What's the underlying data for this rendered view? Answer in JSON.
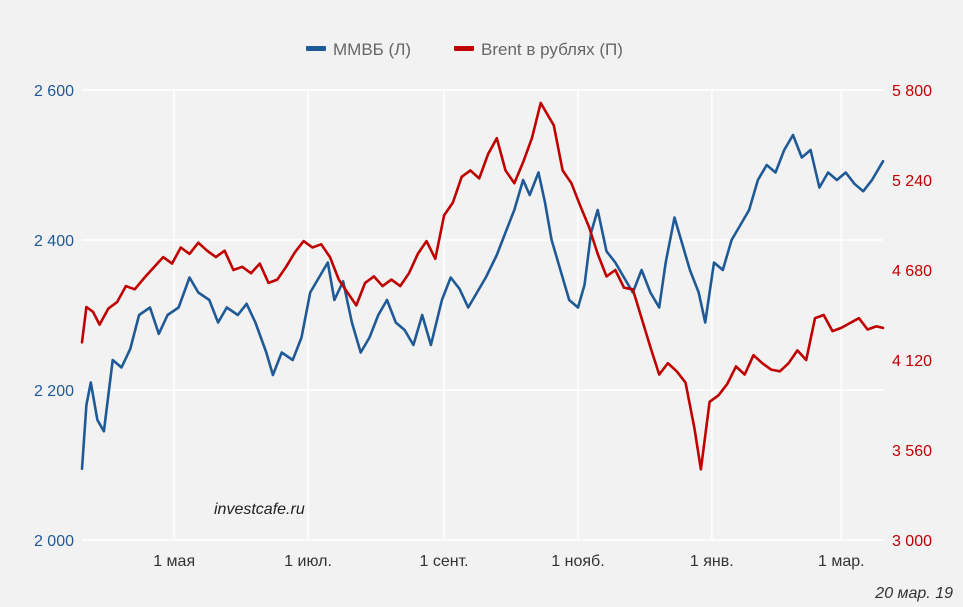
{
  "chart_data": {
    "type": "line",
    "title": "",
    "x_ticks": [
      "1 мая",
      "1 июл.",
      "1 сент.",
      "1 нояб.",
      "1 янв.",
      "1 мар."
    ],
    "x_range": [
      "2018-03-20",
      "2019-03-20"
    ],
    "y_left": {
      "ticks": [
        "2 000",
        "2 200",
        "2 400",
        "2 600"
      ],
      "range": [
        2000,
        2600
      ]
    },
    "y_right": {
      "ticks": [
        "3 000",
        "3 560",
        "4 120",
        "4 680",
        "5 240",
        "5 800"
      ],
      "range": [
        3000,
        5800
      ]
    },
    "grid": true,
    "legend_position": "top-center",
    "series": [
      {
        "name": "ММВБ (Л)",
        "axis": "left",
        "color": "#1f5a96",
        "points": [
          [
            "2018-03-20",
            2095
          ],
          [
            "2018-03-22",
            2180
          ],
          [
            "2018-03-24",
            2210
          ],
          [
            "2018-03-27",
            2160
          ],
          [
            "2018-03-30",
            2145
          ],
          [
            "2018-04-03",
            2240
          ],
          [
            "2018-04-07",
            2230
          ],
          [
            "2018-04-11",
            2255
          ],
          [
            "2018-04-15",
            2300
          ],
          [
            "2018-04-20",
            2310
          ],
          [
            "2018-04-24",
            2275
          ],
          [
            "2018-04-28",
            2300
          ],
          [
            "2018-05-03",
            2310
          ],
          [
            "2018-05-08",
            2350
          ],
          [
            "2018-05-12",
            2330
          ],
          [
            "2018-05-17",
            2320
          ],
          [
            "2018-05-21",
            2290
          ],
          [
            "2018-05-25",
            2310
          ],
          [
            "2018-05-30",
            2300
          ],
          [
            "2018-06-03",
            2315
          ],
          [
            "2018-06-07",
            2290
          ],
          [
            "2018-06-12",
            2250
          ],
          [
            "2018-06-15",
            2220
          ],
          [
            "2018-06-19",
            2250
          ],
          [
            "2018-06-24",
            2240
          ],
          [
            "2018-06-28",
            2270
          ],
          [
            "2018-07-02",
            2330
          ],
          [
            "2018-07-06",
            2350
          ],
          [
            "2018-07-10",
            2370
          ],
          [
            "2018-07-13",
            2320
          ],
          [
            "2018-07-17",
            2345
          ],
          [
            "2018-07-21",
            2290
          ],
          [
            "2018-07-25",
            2250
          ],
          [
            "2018-07-29",
            2270
          ],
          [
            "2018-08-02",
            2300
          ],
          [
            "2018-08-06",
            2320
          ],
          [
            "2018-08-10",
            2290
          ],
          [
            "2018-08-14",
            2280
          ],
          [
            "2018-08-18",
            2260
          ],
          [
            "2018-08-22",
            2300
          ],
          [
            "2018-08-26",
            2260
          ],
          [
            "2018-08-31",
            2320
          ],
          [
            "2018-09-04",
            2350
          ],
          [
            "2018-09-08",
            2335
          ],
          [
            "2018-09-12",
            2310
          ],
          [
            "2018-09-16",
            2330
          ],
          [
            "2018-09-20",
            2350
          ],
          [
            "2018-09-25",
            2380
          ],
          [
            "2018-09-29",
            2410
          ],
          [
            "2018-10-03",
            2440
          ],
          [
            "2018-10-07",
            2480
          ],
          [
            "2018-10-10",
            2460
          ],
          [
            "2018-10-14",
            2490
          ],
          [
            "2018-10-17",
            2450
          ],
          [
            "2018-10-20",
            2400
          ],
          [
            "2018-10-24",
            2360
          ],
          [
            "2018-10-28",
            2320
          ],
          [
            "2018-11-01",
            2310
          ],
          [
            "2018-11-04",
            2340
          ],
          [
            "2018-11-07",
            2410
          ],
          [
            "2018-11-10",
            2440
          ],
          [
            "2018-11-14",
            2385
          ],
          [
            "2018-11-18",
            2370
          ],
          [
            "2018-11-22",
            2350
          ],
          [
            "2018-11-26",
            2330
          ],
          [
            "2018-11-30",
            2360
          ],
          [
            "2018-12-04",
            2330
          ],
          [
            "2018-12-08",
            2310
          ],
          [
            "2018-12-11",
            2370
          ],
          [
            "2018-12-15",
            2430
          ],
          [
            "2018-12-19",
            2390
          ],
          [
            "2018-12-22",
            2360
          ],
          [
            "2018-12-26",
            2330
          ],
          [
            "2018-12-29",
            2290
          ],
          [
            "2019-01-02",
            2370
          ],
          [
            "2019-01-06",
            2360
          ],
          [
            "2019-01-10",
            2400
          ],
          [
            "2019-01-14",
            2420
          ],
          [
            "2019-01-18",
            2440
          ],
          [
            "2019-01-22",
            2480
          ],
          [
            "2019-01-26",
            2500
          ],
          [
            "2019-01-30",
            2490
          ],
          [
            "2019-02-03",
            2520
          ],
          [
            "2019-02-07",
            2540
          ],
          [
            "2019-02-11",
            2510
          ],
          [
            "2019-02-15",
            2520
          ],
          [
            "2019-02-19",
            2470
          ],
          [
            "2019-02-23",
            2490
          ],
          [
            "2019-02-27",
            2480
          ],
          [
            "2019-03-03",
            2490
          ],
          [
            "2019-03-07",
            2475
          ],
          [
            "2019-03-11",
            2465
          ],
          [
            "2019-03-15",
            2480
          ],
          [
            "2019-03-20",
            2505
          ]
        ]
      },
      {
        "name": "Brent в рублях (П)",
        "axis": "right",
        "color": "#c00000",
        "points": [
          [
            "2018-03-20",
            4230
          ],
          [
            "2018-03-22",
            4450
          ],
          [
            "2018-03-25",
            4420
          ],
          [
            "2018-03-28",
            4340
          ],
          [
            "2018-04-01",
            4440
          ],
          [
            "2018-04-05",
            4480
          ],
          [
            "2018-04-09",
            4580
          ],
          [
            "2018-04-13",
            4560
          ],
          [
            "2018-04-18",
            4640
          ],
          [
            "2018-04-22",
            4700
          ],
          [
            "2018-04-26",
            4760
          ],
          [
            "2018-04-30",
            4720
          ],
          [
            "2018-05-04",
            4820
          ],
          [
            "2018-05-08",
            4780
          ],
          [
            "2018-05-12",
            4850
          ],
          [
            "2018-05-16",
            4800
          ],
          [
            "2018-05-20",
            4760
          ],
          [
            "2018-05-24",
            4800
          ],
          [
            "2018-05-28",
            4680
          ],
          [
            "2018-06-01",
            4700
          ],
          [
            "2018-06-05",
            4660
          ],
          [
            "2018-06-09",
            4720
          ],
          [
            "2018-06-13",
            4600
          ],
          [
            "2018-06-17",
            4620
          ],
          [
            "2018-06-21",
            4700
          ],
          [
            "2018-06-25",
            4790
          ],
          [
            "2018-06-29",
            4860
          ],
          [
            "2018-07-03",
            4820
          ],
          [
            "2018-07-07",
            4840
          ],
          [
            "2018-07-11",
            4760
          ],
          [
            "2018-07-15",
            4620
          ],
          [
            "2018-07-19",
            4540
          ],
          [
            "2018-07-23",
            4460
          ],
          [
            "2018-07-27",
            4600
          ],
          [
            "2018-07-31",
            4640
          ],
          [
            "2018-08-04",
            4580
          ],
          [
            "2018-08-08",
            4620
          ],
          [
            "2018-08-12",
            4580
          ],
          [
            "2018-08-16",
            4660
          ],
          [
            "2018-08-20",
            4780
          ],
          [
            "2018-08-24",
            4860
          ],
          [
            "2018-08-28",
            4750
          ],
          [
            "2018-09-01",
            5020
          ],
          [
            "2018-09-05",
            5100
          ],
          [
            "2018-09-09",
            5260
          ],
          [
            "2018-09-13",
            5300
          ],
          [
            "2018-09-17",
            5250
          ],
          [
            "2018-09-21",
            5400
          ],
          [
            "2018-09-25",
            5500
          ],
          [
            "2018-09-29",
            5300
          ],
          [
            "2018-10-03",
            5220
          ],
          [
            "2018-10-07",
            5350
          ],
          [
            "2018-10-11",
            5500
          ],
          [
            "2018-10-15",
            5720
          ],
          [
            "2018-10-18",
            5650
          ],
          [
            "2018-10-21",
            5580
          ],
          [
            "2018-10-25",
            5300
          ],
          [
            "2018-10-29",
            5220
          ],
          [
            "2018-11-02",
            5080
          ],
          [
            "2018-11-06",
            4950
          ],
          [
            "2018-11-10",
            4780
          ],
          [
            "2018-11-14",
            4640
          ],
          [
            "2018-11-18",
            4680
          ],
          [
            "2018-11-22",
            4570
          ],
          [
            "2018-11-26",
            4560
          ],
          [
            "2018-11-30",
            4380
          ],
          [
            "2018-12-04",
            4200
          ],
          [
            "2018-12-08",
            4030
          ],
          [
            "2018-12-12",
            4100
          ],
          [
            "2018-12-16",
            4050
          ],
          [
            "2018-12-20",
            3980
          ],
          [
            "2018-12-24",
            3700
          ],
          [
            "2018-12-27",
            3440
          ],
          [
            "2018-12-31",
            3860
          ],
          [
            "2019-01-04",
            3900
          ],
          [
            "2019-01-08",
            3970
          ],
          [
            "2019-01-12",
            4080
          ],
          [
            "2019-01-16",
            4030
          ],
          [
            "2019-01-20",
            4150
          ],
          [
            "2019-01-24",
            4100
          ],
          [
            "2019-01-28",
            4060
          ],
          [
            "2019-02-01",
            4050
          ],
          [
            "2019-02-05",
            4100
          ],
          [
            "2019-02-09",
            4180
          ],
          [
            "2019-02-13",
            4120
          ],
          [
            "2019-02-17",
            4380
          ],
          [
            "2019-02-21",
            4400
          ],
          [
            "2019-02-25",
            4300
          ],
          [
            "2019-03-01",
            4320
          ],
          [
            "2019-03-05",
            4350
          ],
          [
            "2019-03-09",
            4380
          ],
          [
            "2019-03-13",
            4310
          ],
          [
            "2019-03-17",
            4330
          ],
          [
            "2019-03-20",
            4320
          ]
        ]
      }
    ]
  },
  "watermark": "investcafe.ru",
  "date_stamp": "20 мар. 19"
}
